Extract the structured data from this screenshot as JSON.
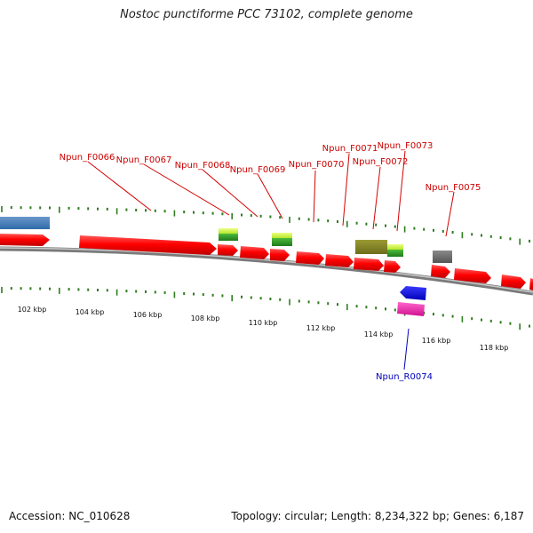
{
  "title": "Nostoc punctiforme PCC 73102, complete genome",
  "footer": {
    "accession": "Accession: NC_010628",
    "stats": "Topology: circular; Length: 8,234,322 bp; Genes: 6,187"
  },
  "colors": {
    "cds": "#ff0000",
    "label_forward": "#cc0000",
    "label_reverse": "#0000bb",
    "backbone": "#888888",
    "tick": "#2e7d1e"
  },
  "map": {
    "kbp_labels": [
      "102 kbp",
      "104 kbp",
      "106 kbp",
      "108 kbp",
      "110 kbp",
      "112 kbp",
      "114 kbp",
      "116 kbp",
      "118 kbp"
    ]
  },
  "genes": [
    {
      "label": "Npun_F0066",
      "strand": "forward"
    },
    {
      "label": "Npun_F0067",
      "strand": "forward"
    },
    {
      "label": "Npun_F0068",
      "strand": "forward"
    },
    {
      "label": "Npun_F0069",
      "strand": "forward"
    },
    {
      "label": "Npun_F0070",
      "strand": "forward"
    },
    {
      "label": "Npun_F0071",
      "strand": "forward"
    },
    {
      "label": "Npun_F0072",
      "strand": "forward"
    },
    {
      "label": "Npun_F0073",
      "strand": "forward"
    },
    {
      "label": "Npun_R0074",
      "strand": "reverse"
    },
    {
      "label": "Npun_F0075",
      "strand": "forward"
    }
  ]
}
